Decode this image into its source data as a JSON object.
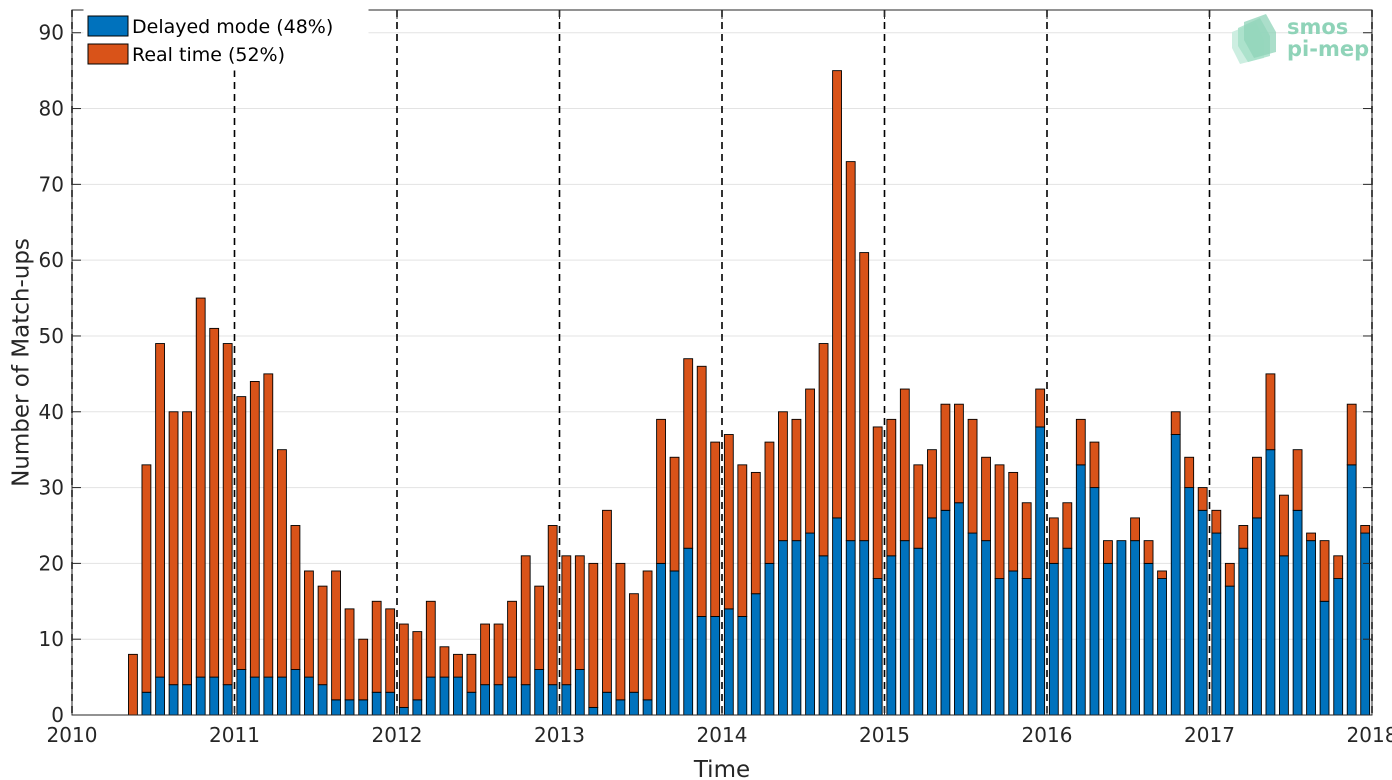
{
  "chart_data": {
    "type": "bar",
    "stacked": true,
    "xlabel": "Time",
    "ylabel": "Number of Match-ups",
    "x_unit": "year",
    "xlim": [
      2010,
      2018
    ],
    "ylim": [
      0,
      93
    ],
    "x_ticks": [
      2010,
      2011,
      2012,
      2013,
      2014,
      2015,
      2016,
      2017,
      2018
    ],
    "x_tick_labels": [
      "2010",
      "2011",
      "2012",
      "2013",
      "2014",
      "2015",
      "2016",
      "2017",
      "2018"
    ],
    "y_ticks": [
      0,
      10,
      20,
      30,
      40,
      50,
      60,
      70,
      80,
      90
    ],
    "y_tick_labels": [
      "0",
      "10",
      "20",
      "30",
      "40",
      "50",
      "60",
      "70",
      "80",
      "90"
    ],
    "grid": "horizontal",
    "vertical_dashed_lines_at": [
      2010,
      2011,
      2012,
      2013,
      2014,
      2015,
      2016,
      2017,
      2018
    ],
    "legend_position": "top-left",
    "logo": {
      "line1": "smos",
      "line2": "pi-mep"
    },
    "colors": {
      "delayed": "#0072BD",
      "realtime": "#D95319"
    },
    "x": [
      2010.375,
      2010.458,
      2010.542,
      2010.625,
      2010.708,
      2010.792,
      2010.875,
      2010.958,
      2011.042,
      2011.125,
      2011.208,
      2011.292,
      2011.375,
      2011.458,
      2011.542,
      2011.625,
      2011.708,
      2011.792,
      2011.875,
      2011.958,
      2012.042,
      2012.125,
      2012.208,
      2012.292,
      2012.375,
      2012.458,
      2012.542,
      2012.625,
      2012.708,
      2012.792,
      2012.875,
      2012.958,
      2013.042,
      2013.125,
      2013.208,
      2013.292,
      2013.375,
      2013.458,
      2013.542,
      2013.625,
      2013.708,
      2013.792,
      2013.875,
      2013.958,
      2014.042,
      2014.125,
      2014.208,
      2014.292,
      2014.375,
      2014.458,
      2014.542,
      2014.625,
      2014.708,
      2014.792,
      2014.875,
      2014.958,
      2015.042,
      2015.125,
      2015.208,
      2015.292,
      2015.375,
      2015.458,
      2015.542,
      2015.625,
      2015.708,
      2015.792,
      2015.875,
      2015.958,
      2016.042,
      2016.125,
      2016.208,
      2016.292,
      2016.375,
      2016.458,
      2016.542,
      2016.625,
      2016.708,
      2016.792,
      2016.875,
      2016.958,
      2017.042,
      2017.125,
      2017.208,
      2017.292,
      2017.375,
      2017.458,
      2017.542,
      2017.625,
      2017.708,
      2017.792,
      2017.875,
      2017.958
    ],
    "series": [
      {
        "name": "Delayed mode (48%)",
        "values": [
          0,
          3,
          5,
          4,
          4,
          5,
          5,
          4,
          6,
          5,
          5,
          5,
          6,
          5,
          4,
          2,
          2,
          2,
          3,
          3,
          1,
          2,
          5,
          5,
          5,
          3,
          4,
          4,
          5,
          4,
          6,
          4,
          4,
          6,
          1,
          3,
          2,
          3,
          2,
          20,
          19,
          22,
          13,
          13,
          14,
          13,
          16,
          20,
          23,
          23,
          24,
          21,
          26,
          23,
          23,
          18,
          21,
          23,
          22,
          26,
          27,
          28,
          24,
          23,
          18,
          19,
          18,
          38,
          20,
          22,
          33,
          30,
          20,
          23,
          23,
          20,
          18,
          37,
          30,
          27,
          24,
          17,
          22,
          26,
          35,
          21,
          27,
          23,
          15,
          18,
          33,
          24
        ]
      },
      {
        "name": "Real time (52%)",
        "values": [
          8,
          30,
          44,
          36,
          36,
          50,
          46,
          45,
          36,
          39,
          40,
          30,
          19,
          14,
          13,
          17,
          12,
          8,
          12,
          11,
          11,
          9,
          10,
          4,
          3,
          5,
          8,
          8,
          10,
          17,
          11,
          21,
          17,
          15,
          19,
          24,
          18,
          13,
          17,
          19,
          15,
          25,
          33,
          23,
          23,
          20,
          16,
          16,
          17,
          16,
          19,
          28,
          59,
          50,
          38,
          20,
          18,
          20,
          11,
          9,
          14,
          13,
          15,
          11,
          15,
          13,
          10,
          5,
          6,
          6,
          6,
          6,
          3,
          0,
          3,
          3,
          1,
          3,
          4,
          3,
          3,
          3,
          3,
          8,
          10,
          8,
          8,
          1,
          8,
          3,
          8,
          1
        ]
      }
    ]
  }
}
